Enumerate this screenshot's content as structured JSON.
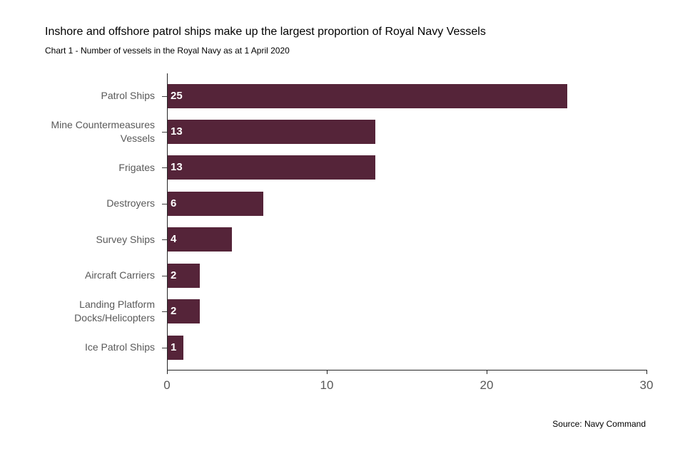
{
  "header": {
    "title": "Inshore and offshore patrol ships make up the largest proportion of Royal Navy Vessels",
    "subtitle": "Chart 1 - Number of vessels in the Royal Navy as at 1 April 2020"
  },
  "chart_data": {
    "type": "bar",
    "orientation": "horizontal",
    "title": "Inshore and offshore patrol ships make up the largest proportion of Royal Navy Vessels",
    "subtitle": "Chart 1 - Number of vessels in the Royal Navy as at 1 April 2020",
    "categories": [
      "Patrol Ships",
      "Mine Countermeasures Vessels",
      "Frigates",
      "Destroyers",
      "Survey Ships",
      "Aircraft Carriers",
      "Landing Platform Docks/Helicopters",
      "Ice Patrol Ships"
    ],
    "values": [
      25,
      13,
      13,
      6,
      4,
      2,
      2,
      1
    ],
    "data_labels": [
      25,
      13,
      13,
      6,
      4,
      2,
      2,
      1
    ],
    "x_ticks": [
      0,
      10,
      20,
      30
    ],
    "xlim": [
      0,
      30
    ],
    "xlabel": "",
    "ylabel": "",
    "grid": false,
    "legend": "none",
    "bar_color": "#552439",
    "value_label_color": "#ffffff",
    "axis_color": "#262626",
    "tick_label_color": "#595959"
  },
  "footer": {
    "source": "Source: Navy Command"
  }
}
